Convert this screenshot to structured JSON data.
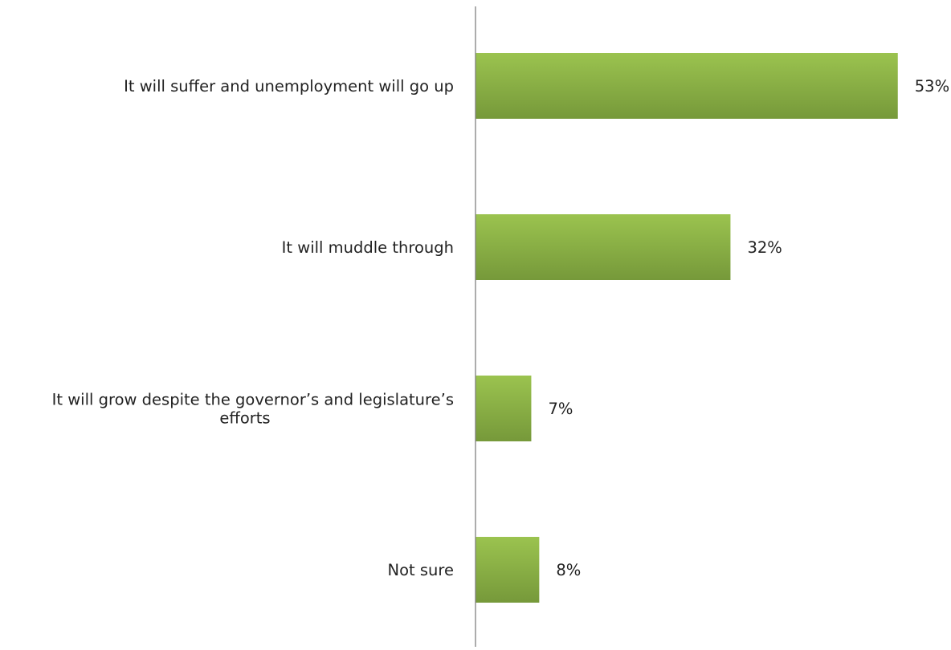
{
  "chart_data": {
    "type": "bar",
    "orientation": "horizontal",
    "categories": [
      [
        "It will suffer and unemployment will go up"
      ],
      [
        "It will muddle through"
      ],
      [
        "It will grow despite the governor’s and legislature’s",
        "efforts"
      ],
      [
        "Not sure"
      ]
    ],
    "values": [
      53,
      32,
      7,
      8
    ],
    "data_labels": [
      "53%",
      "32%",
      "7%",
      "8%"
    ],
    "value_format": "percent",
    "xlim": [
      0,
      60
    ],
    "title": "",
    "xlabel": "",
    "ylabel": "",
    "grid": false,
    "legend": "none",
    "colors": {
      "bar_top": "#9bc34f",
      "bar_bottom": "#76993a",
      "axis": "#7f7f7f",
      "text": "#222222"
    }
  }
}
